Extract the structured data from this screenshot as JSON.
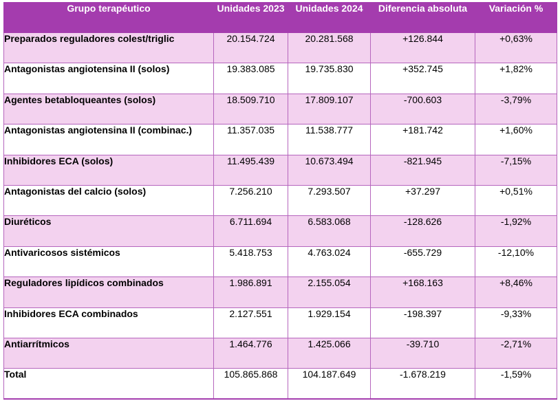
{
  "headers": {
    "grupo": "Grupo terapéutico",
    "u2023": "Unidades 2023",
    "u2024": "Unidades 2024",
    "diff": "Diferencia absoluta",
    "var": "Variación %"
  },
  "rows": [
    {
      "grupo": "Preparados reguladores colest/triglic",
      "u2023": "20.154.724",
      "u2024": "20.281.568",
      "diff": "+126.844",
      "var": "+0,63%"
    },
    {
      "grupo": "Antagonistas angiotensina II (solos)",
      "u2023": "19.383.085",
      "u2024": "19.735.830",
      "diff": "+352.745",
      "var": "+1,82%"
    },
    {
      "grupo": "Agentes betabloqueantes (solos)",
      "u2023": "18.509.710",
      "u2024": "17.809.107",
      "diff": "-700.603",
      "var": "-3,79%"
    },
    {
      "grupo": "Antagonistas angiotensina II (combinac.)",
      "u2023": "11.357.035",
      "u2024": "11.538.777",
      "diff": "+181.742",
      "var": "+1,60%"
    },
    {
      "grupo": "Inhibidores ECA (solos)",
      "u2023": "11.495.439",
      "u2024": "10.673.494",
      "diff": "-821.945",
      "var": "-7,15%"
    },
    {
      "grupo": "Antagonistas del calcio (solos)",
      "u2023": "7.256.210",
      "u2024": "7.293.507",
      "diff": "+37.297",
      "var": "+0,51%"
    },
    {
      "grupo": "Diuréticos",
      "u2023": "6.711.694",
      "u2024": "6.583.068",
      "diff": "-128.626",
      "var": "-1,92%"
    },
    {
      "grupo": "Antivaricosos sistémicos",
      "u2023": "5.418.753",
      "u2024": "4.763.024",
      "diff": "-655.729",
      "var": "-12,10%"
    },
    {
      "grupo": "Reguladores lipídicos combinados",
      "u2023": "1.986.891",
      "u2024": "2.155.054",
      "diff": "+168.163",
      "var": "+8,46%"
    },
    {
      "grupo": "Inhibidores ECA combinados",
      "u2023": "2.127.551",
      "u2024": "1.929.154",
      "diff": "-198.397",
      "var": "-9,33%"
    },
    {
      "grupo": "Antiarrítmicos",
      "u2023": "1.464.776",
      "u2024": "1.425.066",
      "diff": "-39.710",
      "var": "-2,71%"
    },
    {
      "grupo": "Total",
      "u2023": "105.865.868",
      "u2024": "104.187.649",
      "diff": "-1.678.219",
      "var": "-1,59%"
    }
  ],
  "colors": {
    "header_bg": "#a43cae",
    "row_pink": "#f3d2ef",
    "row_white": "#ffffff",
    "border": "#b565bd"
  }
}
